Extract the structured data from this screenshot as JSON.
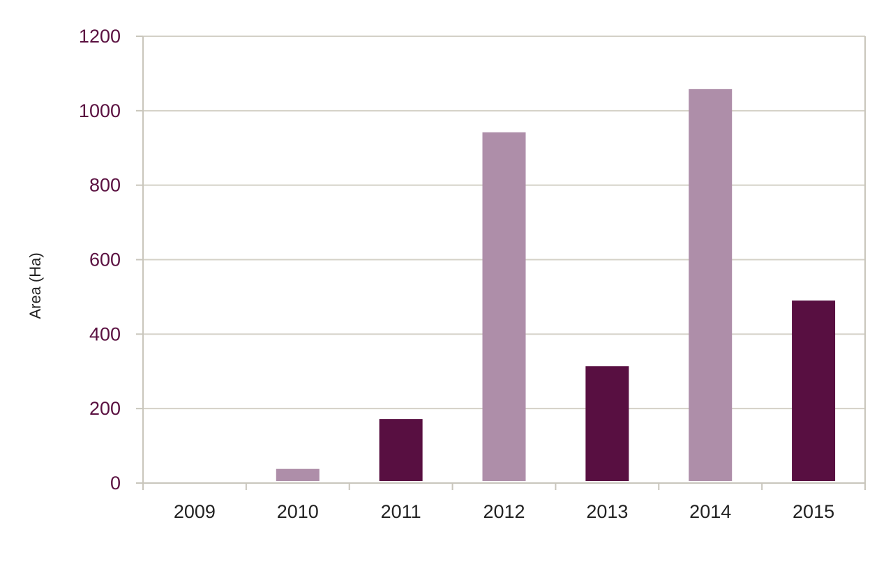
{
  "chart_data": {
    "type": "bar",
    "title": "",
    "xlabel": "",
    "ylabel": "Area (Ha)",
    "categories": [
      "2009",
      "2010",
      "2011",
      "2012",
      "2013",
      "2014",
      "2015"
    ],
    "values": [
      5,
      38,
      172,
      942,
      314,
      1058,
      490
    ],
    "ylim": [
      0,
      1200
    ],
    "yticks": [
      0,
      200,
      400,
      600,
      800,
      1000,
      1200
    ],
    "grid": true,
    "legend": "none",
    "colors": {
      "dark": "#580f41",
      "light": "#ae8ea9"
    },
    "bar_color_pattern": [
      "dark",
      "light",
      "dark",
      "light",
      "dark",
      "light",
      "dark"
    ]
  }
}
